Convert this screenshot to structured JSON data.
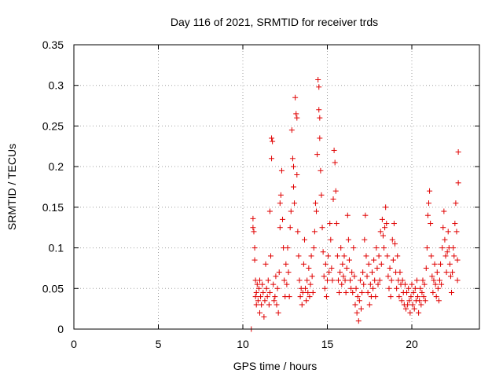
{
  "chart_data": {
    "type": "scatter",
    "title": "Day 116 of 2021, SRMTID for receiver trds",
    "xlabel": "GPS time / hours",
    "ylabel": "SRMTID / TECUs",
    "xlim": [
      0,
      24
    ],
    "ylim": [
      0,
      0.35
    ],
    "xticks": [
      0,
      5,
      10,
      15,
      20
    ],
    "yticks": [
      0,
      0.05,
      0.1,
      0.15,
      0.2,
      0.25,
      0.3,
      0.35
    ],
    "grid": true,
    "series": [
      {
        "color": "#e00000",
        "marker": "plus",
        "points": [
          [
            10.5,
            0.0
          ],
          [
            10.6,
            0.125
          ],
          [
            10.6,
            0.136
          ],
          [
            10.65,
            0.12
          ],
          [
            10.7,
            0.1
          ],
          [
            10.7,
            0.085
          ],
          [
            10.75,
            0.06
          ],
          [
            10.75,
            0.04
          ],
          [
            10.8,
            0.03
          ],
          [
            10.8,
            0.045
          ],
          [
            10.85,
            0.055
          ],
          [
            10.9,
            0.035
          ],
          [
            10.95,
            0.05
          ],
          [
            11.0,
            0.02
          ],
          [
            11.0,
            0.06
          ],
          [
            11.05,
            0.04
          ],
          [
            11.1,
            0.03
          ],
          [
            11.15,
            0.055
          ],
          [
            11.2,
            0.045
          ],
          [
            11.25,
            0.015
          ],
          [
            11.3,
            0.035
          ],
          [
            11.35,
            0.08
          ],
          [
            11.4,
            0.05
          ],
          [
            11.45,
            0.04
          ],
          [
            11.5,
            0.06
          ],
          [
            11.55,
            0.03
          ],
          [
            11.6,
            0.045
          ],
          [
            11.6,
            0.145
          ],
          [
            11.65,
            0.09
          ],
          [
            11.7,
            0.235
          ],
          [
            11.75,
            0.231
          ],
          [
            11.7,
            0.21
          ],
          [
            11.8,
            0.055
          ],
          [
            11.85,
            0.035
          ],
          [
            11.9,
            0.04
          ],
          [
            11.95,
            0.065
          ],
          [
            12.0,
            0.03
          ],
          [
            12.05,
            0.05
          ],
          [
            12.1,
            0.02
          ],
          [
            12.15,
            0.07
          ],
          [
            12.2,
            0.125
          ],
          [
            12.2,
            0.155
          ],
          [
            12.25,
            0.165
          ],
          [
            12.3,
            0.195
          ],
          [
            12.35,
            0.135
          ],
          [
            12.4,
            0.1
          ],
          [
            12.45,
            0.06
          ],
          [
            12.5,
            0.04
          ],
          [
            12.55,
            0.08
          ],
          [
            12.6,
            0.055
          ],
          [
            12.65,
            0.1
          ],
          [
            12.7,
            0.07
          ],
          [
            12.75,
            0.04
          ],
          [
            12.8,
            0.125
          ],
          [
            12.85,
            0.145
          ],
          [
            12.9,
            0.245
          ],
          [
            12.95,
            0.21
          ],
          [
            13.0,
            0.175
          ],
          [
            13.0,
            0.2
          ],
          [
            13.05,
            0.155
          ],
          [
            13.1,
            0.285
          ],
          [
            13.15,
            0.265
          ],
          [
            13.2,
            0.26
          ],
          [
            13.2,
            0.19
          ],
          [
            13.25,
            0.12
          ],
          [
            13.3,
            0.09
          ],
          [
            13.35,
            0.06
          ],
          [
            13.4,
            0.04
          ],
          [
            13.45,
            0.05
          ],
          [
            13.5,
            0.03
          ],
          [
            13.55,
            0.045
          ],
          [
            13.6,
            0.08
          ],
          [
            13.65,
            0.11
          ],
          [
            13.7,
            0.05
          ],
          [
            13.75,
            0.035
          ],
          [
            13.8,
            0.06
          ],
          [
            13.85,
            0.045
          ],
          [
            13.9,
            0.075
          ],
          [
            13.95,
            0.04
          ],
          [
            14.0,
            0.055
          ],
          [
            14.05,
            0.09
          ],
          [
            14.1,
            0.065
          ],
          [
            14.15,
            0.045
          ],
          [
            14.2,
            0.1
          ],
          [
            14.25,
            0.12
          ],
          [
            14.3,
            0.155
          ],
          [
            14.35,
            0.145
          ],
          [
            14.4,
            0.215
          ],
          [
            14.45,
            0.307
          ],
          [
            14.5,
            0.298
          ],
          [
            14.5,
            0.27
          ],
          [
            14.55,
            0.26
          ],
          [
            14.55,
            0.235
          ],
          [
            14.6,
            0.195
          ],
          [
            14.65,
            0.165
          ],
          [
            14.7,
            0.125
          ],
          [
            14.75,
            0.095
          ],
          [
            14.8,
            0.065
          ],
          [
            14.85,
            0.05
          ],
          [
            14.9,
            0.08
          ],
          [
            14.95,
            0.04
          ],
          [
            15.0,
            0.06
          ],
          [
            15.05,
            0.09
          ],
          [
            15.1,
            0.07
          ],
          [
            15.15,
            0.13
          ],
          [
            15.2,
            0.11
          ],
          [
            15.25,
            0.075
          ],
          [
            15.3,
            0.06
          ],
          [
            15.35,
            0.16
          ],
          [
            15.4,
            0.22
          ],
          [
            15.45,
            0.205
          ],
          [
            15.5,
            0.17
          ],
          [
            15.55,
            0.13
          ],
          [
            15.6,
            0.09
          ],
          [
            15.65,
            0.06
          ],
          [
            15.7,
            0.045
          ],
          [
            15.75,
            0.07
          ],
          [
            15.8,
            0.1
          ],
          [
            15.85,
            0.055
          ],
          [
            15.9,
            0.08
          ],
          [
            15.95,
            0.065
          ],
          [
            16.0,
            0.09
          ],
          [
            16.05,
            0.06
          ],
          [
            16.1,
            0.045
          ],
          [
            16.15,
            0.075
          ],
          [
            16.2,
            0.14
          ],
          [
            16.25,
            0.11
          ],
          [
            16.3,
            0.085
          ],
          [
            16.35,
            0.06
          ],
          [
            16.4,
            0.05
          ],
          [
            16.45,
            0.07
          ],
          [
            16.5,
            0.045
          ],
          [
            16.55,
            0.1
          ],
          [
            16.6,
            0.065
          ],
          [
            16.65,
            0.03
          ],
          [
            16.7,
            0.05
          ],
          [
            16.75,
            0.02
          ],
          [
            16.8,
            0.04
          ],
          [
            16.85,
            0.01
          ],
          [
            16.9,
            0.035
          ],
          [
            16.95,
            0.06
          ],
          [
            17.0,
            0.025
          ],
          [
            17.05,
            0.045
          ],
          [
            17.1,
            0.07
          ],
          [
            17.15,
            0.055
          ],
          [
            17.2,
            0.11
          ],
          [
            17.25,
            0.14
          ],
          [
            17.3,
            0.09
          ],
          [
            17.35,
            0.065
          ],
          [
            17.4,
            0.045
          ],
          [
            17.45,
            0.08
          ],
          [
            17.5,
            0.03
          ],
          [
            17.55,
            0.055
          ],
          [
            17.6,
            0.04
          ],
          [
            17.65,
            0.07
          ],
          [
            17.7,
            0.05
          ],
          [
            17.75,
            0.085
          ],
          [
            17.8,
            0.06
          ],
          [
            17.85,
            0.04
          ],
          [
            17.9,
            0.1
          ],
          [
            17.95,
            0.075
          ],
          [
            18.0,
            0.055
          ],
          [
            18.05,
            0.09
          ],
          [
            18.1,
            0.06
          ],
          [
            18.15,
            0.12
          ],
          [
            18.2,
            0.08
          ],
          [
            18.25,
            0.135
          ],
          [
            18.3,
            0.115
          ],
          [
            18.35,
            0.1
          ],
          [
            18.4,
            0.125
          ],
          [
            18.45,
            0.15
          ],
          [
            18.5,
            0.13
          ],
          [
            18.55,
            0.09
          ],
          [
            18.6,
            0.065
          ],
          [
            18.65,
            0.05
          ],
          [
            18.7,
            0.075
          ],
          [
            18.75,
            0.04
          ],
          [
            18.8,
            0.06
          ],
          [
            18.85,
            0.11
          ],
          [
            18.9,
            0.085
          ],
          [
            18.95,
            0.13
          ],
          [
            19.0,
            0.105
          ],
          [
            19.05,
            0.07
          ],
          [
            19.1,
            0.05
          ],
          [
            19.15,
            0.09
          ],
          [
            19.2,
            0.06
          ],
          [
            19.25,
            0.04
          ],
          [
            19.3,
            0.07
          ],
          [
            19.35,
            0.055
          ],
          [
            19.4,
            0.035
          ],
          [
            19.45,
            0.06
          ],
          [
            19.5,
            0.045
          ],
          [
            19.55,
            0.03
          ],
          [
            19.6,
            0.055
          ],
          [
            19.65,
            0.025
          ],
          [
            19.7,
            0.045
          ],
          [
            19.75,
            0.03
          ],
          [
            19.8,
            0.05
          ],
          [
            19.85,
            0.035
          ],
          [
            19.9,
            0.02
          ],
          [
            19.95,
            0.04
          ],
          [
            20.0,
            0.055
          ],
          [
            20.05,
            0.03
          ],
          [
            20.1,
            0.045
          ],
          [
            20.15,
            0.025
          ],
          [
            20.2,
            0.05
          ],
          [
            20.25,
            0.035
          ],
          [
            20.3,
            0.06
          ],
          [
            20.35,
            0.04
          ],
          [
            20.4,
            0.02
          ],
          [
            20.45,
            0.035
          ],
          [
            20.5,
            0.05
          ],
          [
            20.55,
            0.03
          ],
          [
            20.6,
            0.045
          ],
          [
            20.65,
            0.06
          ],
          [
            20.7,
            0.04
          ],
          [
            20.75,
            0.055
          ],
          [
            20.8,
            0.035
          ],
          [
            20.85,
            0.075
          ],
          [
            20.9,
            0.1
          ],
          [
            20.95,
            0.14
          ],
          [
            21.0,
            0.155
          ],
          [
            21.05,
            0.17
          ],
          [
            21.1,
            0.13
          ],
          [
            21.15,
            0.09
          ],
          [
            21.2,
            0.065
          ],
          [
            21.25,
            0.045
          ],
          [
            21.3,
            0.06
          ],
          [
            21.35,
            0.08
          ],
          [
            21.4,
            0.055
          ],
          [
            21.45,
            0.04
          ],
          [
            21.5,
            0.07
          ],
          [
            21.55,
            0.05
          ],
          [
            21.6,
            0.035
          ],
          [
            21.65,
            0.06
          ],
          [
            21.7,
            0.08
          ],
          [
            21.75,
            0.055
          ],
          [
            21.8,
            0.1
          ],
          [
            21.85,
            0.125
          ],
          [
            21.9,
            0.145
          ],
          [
            21.95,
            0.11
          ],
          [
            22.0,
            0.09
          ],
          [
            22.05,
            0.07
          ],
          [
            22.1,
            0.095
          ],
          [
            22.15,
            0.12
          ],
          [
            22.2,
            0.1
          ],
          [
            22.25,
            0.08
          ],
          [
            22.3,
            0.065
          ],
          [
            22.35,
            0.045
          ],
          [
            22.4,
            0.07
          ],
          [
            22.45,
            0.1
          ],
          [
            22.5,
            0.09
          ],
          [
            22.55,
            0.13
          ],
          [
            22.6,
            0.155
          ],
          [
            22.65,
            0.12
          ],
          [
            22.7,
            0.085
          ],
          [
            22.7,
            0.06
          ],
          [
            22.75,
            0.18
          ],
          [
            22.75,
            0.218
          ]
        ]
      }
    ]
  }
}
